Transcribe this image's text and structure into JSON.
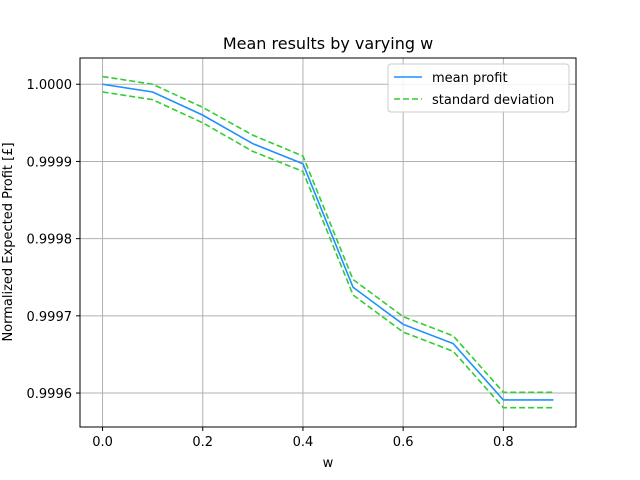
{
  "chart_data": {
    "type": "line",
    "title": "Mean results by varying w",
    "xlabel": "w",
    "ylabel": "Normalized Expected Profit [£]",
    "xlim": [
      -0.045,
      0.945
    ],
    "ylim": [
      0.999556,
      1.000034
    ],
    "xticks": [
      0.0,
      0.2,
      0.4,
      0.6,
      0.8
    ],
    "xtick_labels": [
      "0.0",
      "0.2",
      "0.4",
      "0.6",
      "0.8"
    ],
    "yticks": [
      0.9996,
      0.9997,
      0.9998,
      0.9999,
      1.0
    ],
    "ytick_labels": [
      "0.9996",
      "0.9997",
      "0.9998",
      "0.9999",
      "1.0000"
    ],
    "grid": true,
    "legend_position": "top-right",
    "x": [
      0.0,
      0.1,
      0.2,
      0.3,
      0.4,
      0.5,
      0.6,
      0.7,
      0.8,
      0.9
    ],
    "series": [
      {
        "name": "mean profit",
        "color": "#1e90ff",
        "style": "solid",
        "values": [
          1.0,
          0.99999,
          0.99996,
          0.999923,
          0.999897,
          0.999737,
          0.999689,
          0.999664,
          0.999591,
          0.999591
        ]
      },
      {
        "name": "standard deviation",
        "color": "#32cd32",
        "style": "dashed",
        "values": [
          1.00001,
          1.0,
          0.99997,
          0.999934,
          0.999907,
          0.999747,
          0.999699,
          0.999674,
          0.999601,
          0.999601
        ]
      },
      {
        "name": "standard deviation (lower)",
        "color": "#32cd32",
        "style": "dashed",
        "legend": false,
        "values": [
          0.99999,
          0.99998,
          0.99995,
          0.999913,
          0.999887,
          0.999727,
          0.999679,
          0.999654,
          0.999581,
          0.999581
        ]
      }
    ]
  }
}
